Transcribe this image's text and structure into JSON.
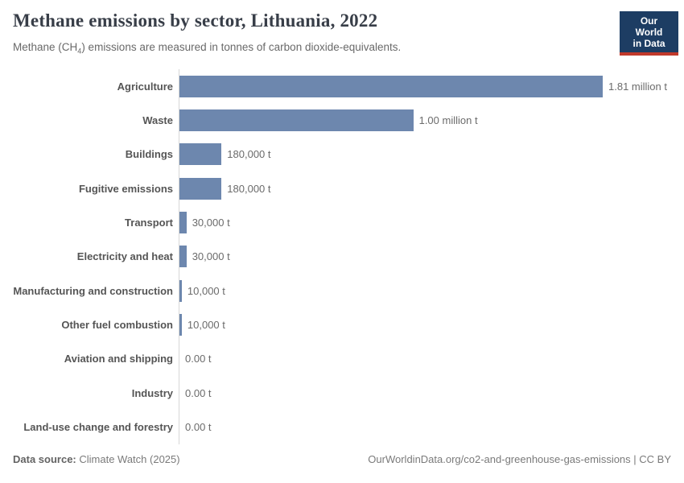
{
  "header": {
    "title": "Methane emissions by sector, Lithuania, 2022",
    "subtitle": {
      "prefix": "Methane (CH",
      "sub": "4",
      "suffix": ") emissions are measured in tonnes of carbon dioxide-equivalents."
    },
    "logo": {
      "line1": "Our World",
      "line2": "in Data"
    }
  },
  "chart_data": {
    "type": "bar",
    "orientation": "horizontal",
    "title": "Methane emissions by sector, Lithuania, 2022",
    "xlabel": "",
    "ylabel": "",
    "unit": "tonnes of carbon dioxide-equivalents",
    "xlim": [
      0,
      1810000
    ],
    "grid": false,
    "categories": [
      "Agriculture",
      "Waste",
      "Buildings",
      "Fugitive emissions",
      "Transport",
      "Electricity and heat",
      "Manufacturing and construction",
      "Other fuel combustion",
      "Aviation and shipping",
      "Industry",
      "Land-use change and forestry"
    ],
    "values": [
      1810000,
      1000000,
      180000,
      180000,
      30000,
      30000,
      10000,
      10000,
      0,
      0,
      0
    ],
    "value_labels": [
      "1.81 million t",
      "1.00 million t",
      "180,000 t",
      "180,000 t",
      "30,000 t",
      "30,000 t",
      "10,000 t",
      "10,000 t",
      "0.00 t",
      "0.00 t",
      "0.00 t"
    ]
  },
  "footer": {
    "source_label": "Data source:",
    "source_value": " Climate Watch (2025)",
    "link": "OurWorldinData.org/co2-and-greenhouse-gas-emissions | CC BY"
  },
  "colors": {
    "bar": "#6d87ae",
    "axis_line": "#d6d6d6",
    "logo_bg": "#1d3d63",
    "logo_red": "#c0392b",
    "title_text": "#383e48",
    "subtitle_text": "#696969",
    "category_text": "#555555",
    "value_text": "#6b6b6b",
    "footer_text": "#7a7a7a"
  }
}
